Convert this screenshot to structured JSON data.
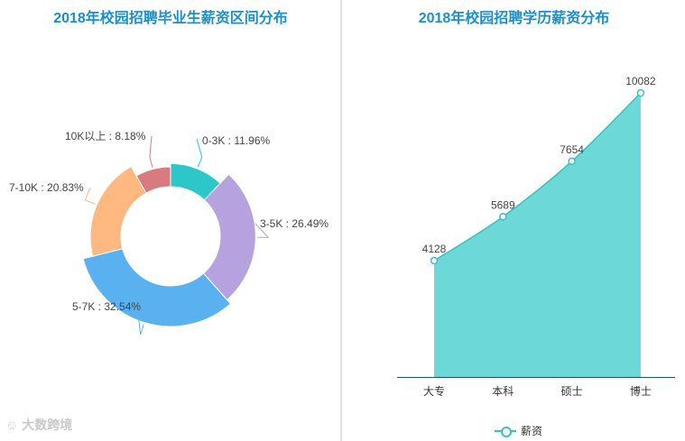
{
  "chart_data": [
    {
      "type": "pie",
      "title": "2018年校园招聘毕业生薪资区间分布",
      "slices": [
        {
          "label": "0-3K",
          "value": 11.96,
          "display": "0-3K : 11.96%",
          "color": "#2ec7c9"
        },
        {
          "label": "3-5K",
          "value": 26.49,
          "display": "3-5K : 26.49%",
          "color": "#b6a2de"
        },
        {
          "label": "5-7K",
          "value": 32.54,
          "display": "5-7K : 32.54%",
          "color": "#5ab1ef"
        },
        {
          "label": "7-10K",
          "value": 20.83,
          "display": "7-10K : 20.83%",
          "color": "#ffb980"
        },
        {
          "label": "10K以上",
          "value": 8.18,
          "display": "10K以上 : 8.18%",
          "color": "#d87a80"
        }
      ]
    },
    {
      "type": "area",
      "title": "2018年校园招聘学历薪资分布",
      "categories": [
        "大专",
        "本科",
        "硕士",
        "博士"
      ],
      "series": [
        {
          "name": "薪资",
          "values": [
            4128,
            5689,
            7654,
            10082
          ],
          "color": "#6cd8d8",
          "line_color": "#3bbfbf"
        }
      ],
      "ylim": [
        0,
        10082
      ]
    }
  ],
  "legend": {
    "label": "薪资"
  },
  "watermark": {
    "text": "大数跨境",
    "icon": "logo-icon"
  }
}
